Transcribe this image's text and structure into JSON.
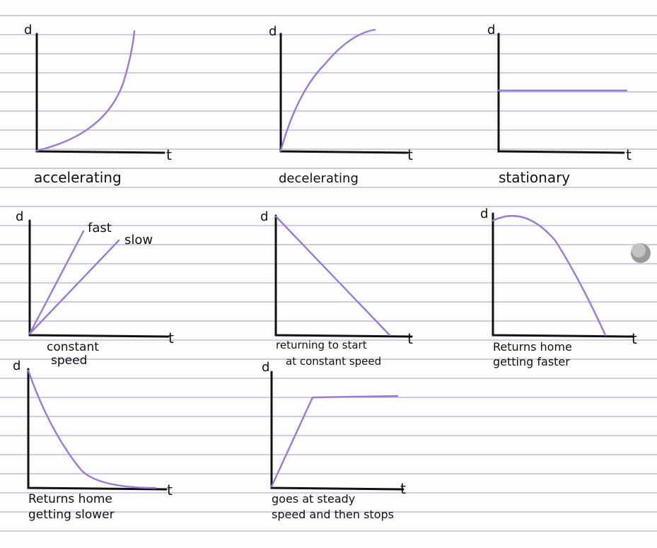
{
  "colors": {
    "ruled_line": "#8a73c4",
    "curve": "#9a7bd1",
    "ink": "#111111"
  },
  "graphs": [
    {
      "id": "accelerating",
      "y_axis": "d",
      "x_axis": "t",
      "caption": [
        "accelerating"
      ]
    },
    {
      "id": "decelerating",
      "y_axis": "d",
      "x_axis": "t",
      "caption": [
        "decelerating"
      ]
    },
    {
      "id": "stationary",
      "y_axis": "d",
      "x_axis": "t",
      "caption": [
        "stationary"
      ]
    },
    {
      "id": "constant-speed",
      "y_axis": "d",
      "x_axis": "t",
      "caption": [
        "constant",
        "speed"
      ],
      "line_labels": [
        "fast",
        "slow"
      ]
    },
    {
      "id": "returning-to-start",
      "y_axis": "d",
      "x_axis": "t",
      "caption": [
        "returning to start",
        "at constant speed"
      ]
    },
    {
      "id": "returns-home-faster",
      "y_axis": "d",
      "x_axis": "t",
      "caption": [
        "Returns home",
        "getting faster"
      ]
    },
    {
      "id": "returns-home-slower",
      "y_axis": "d",
      "x_axis": "t",
      "caption": [
        "Returns home",
        "getting slower"
      ]
    },
    {
      "id": "steady-then-stops",
      "y_axis": "d",
      "x_axis": "t",
      "caption": [
        "goes at steady",
        "speed and then stops"
      ]
    }
  ]
}
